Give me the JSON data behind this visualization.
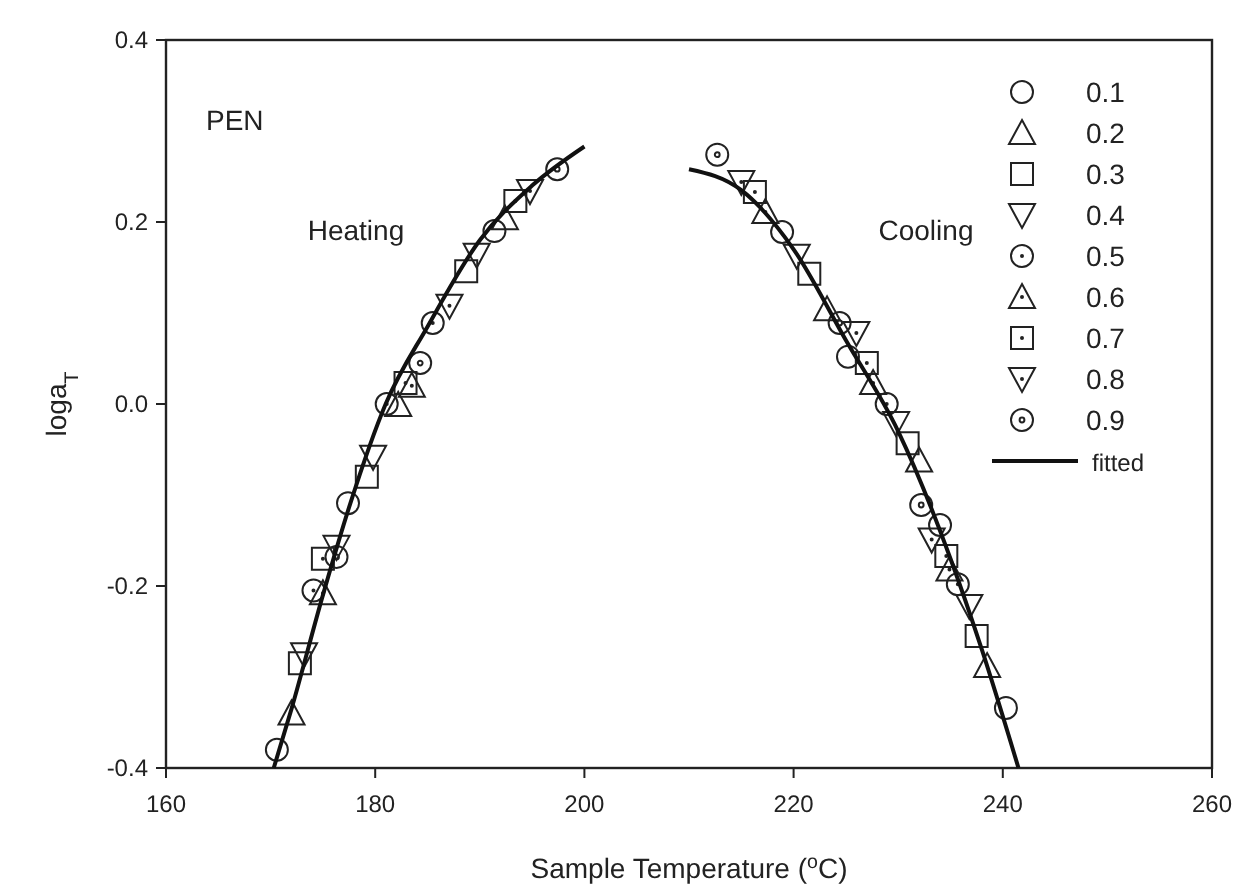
{
  "chart_data": {
    "type": "scatter",
    "xlabel": "Sample Temperature ($^{o}$C)",
    "ylabel": "loga$_{T}$",
    "annotations": [
      "PEN",
      "Heating",
      "Cooling"
    ],
    "xlim": [
      160,
      260
    ],
    "xticks": [
      160,
      180,
      200,
      220,
      240,
      260
    ],
    "ylim": [
      -0.4,
      0.4
    ],
    "yticks": [
      -0.4,
      -0.2,
      {
        "value": 0,
        "label": "0.0"
      },
      0.2,
      0.4
    ],
    "grid": false,
    "legend": "top right",
    "series": [
      {
        "name": "0.1",
        "color": "#222222",
        "marker": "circle",
        "x": [
          170.6,
          177.4,
          191.4,
          218.9,
          225.2,
          234.0,
          240.3
        ],
        "values": [
          -0.38,
          -0.109,
          0.19,
          0.189,
          0.052,
          -0.133,
          -0.334
        ]
      },
      {
        "name": "0.2",
        "color": "#222222",
        "marker": "triangle",
        "x": [
          172.0,
          182.2,
          192.4,
          223.2,
          232.0,
          238.5
        ],
        "values": [
          -0.34,
          -0.001,
          0.204,
          0.104,
          -0.062,
          -0.288
        ]
      },
      {
        "name": "0.3",
        "color": "#222222",
        "marker": "square",
        "x": [
          172.8,
          179.2,
          188.7,
          221.5,
          230.9,
          237.5
        ],
        "values": [
          -0.285,
          -0.08,
          0.146,
          0.143,
          -0.043,
          -0.255
        ]
      },
      {
        "name": "0.4",
        "color": "#222222",
        "marker": "triangle-down",
        "x": [
          173.2,
          179.8,
          189.7,
          220.3,
          229.8,
          236.8
        ],
        "values": [
          -0.275,
          -0.058,
          0.164,
          0.163,
          -0.021,
          -0.222
        ]
      },
      {
        "name": "0.5",
        "color": "#222222",
        "marker": "circle-dot",
        "x": [
          174.1,
          181.1,
          185.5,
          228.9,
          235.7
        ],
        "values": [
          -0.205,
          0.0,
          0.089,
          0.0,
          -0.198
        ]
      },
      {
        "name": "0.6",
        "color": "#222222",
        "marker": "triangle-dot",
        "x": [
          175.0,
          183.5,
          217.3,
          227.6,
          234.9
        ],
        "values": [
          -0.208,
          0.02,
          0.211,
          0.023,
          -0.182
        ]
      },
      {
        "name": "0.7",
        "color": "#222222",
        "marker": "square-dot",
        "x": [
          175.0,
          182.9,
          193.4,
          216.3,
          227.0,
          234.6
        ],
        "values": [
          -0.17,
          0.023,
          0.223,
          0.233,
          0.045,
          -0.167
        ]
      },
      {
        "name": "0.8",
        "color": "#222222",
        "marker": "triangle-down-dot",
        "x": [
          176.3,
          187.1,
          194.8,
          215.0,
          226.0,
          233.2
        ],
        "values": [
          -0.157,
          0.108,
          0.234,
          0.244,
          0.078,
          -0.149
        ]
      },
      {
        "name": "0.9",
        "color": "#222222",
        "marker": "circle-plus",
        "x": [
          176.3,
          184.3,
          197.4,
          212.7,
          224.4,
          232.2
        ],
        "values": [
          -0.168,
          0.045,
          0.258,
          0.274,
          0.089,
          -0.111
        ]
      },
      {
        "name": "fitted",
        "type": "line",
        "color": "#111111",
        "line_style": "solid",
        "marker": "none",
        "x": [
          170.3,
          172,
          175,
          177.6,
          181,
          185,
          190,
          195,
          200
        ],
        "values": [
          -0.4,
          -0.335,
          -0.21,
          -0.11,
          0,
          0.085,
          0.18,
          0.24,
          0.283
        ]
      },
      {
        "type": "line",
        "color": "#111111",
        "line_style": "solid",
        "marker": "none",
        "x": [
          210,
          215,
          220,
          225,
          230,
          235,
          238,
          241.5
        ],
        "values": [
          0.258,
          0.235,
          0.17,
          0.07,
          -0.03,
          -0.17,
          -0.27,
          -0.4
        ]
      }
    ]
  }
}
